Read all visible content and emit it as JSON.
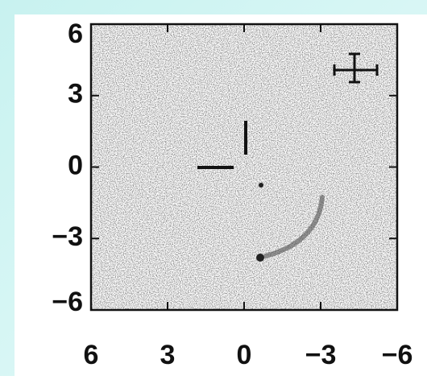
{
  "chart_data": {
    "type": "image",
    "xlim": [
      6,
      -6
    ],
    "xticks": [
      6,
      3,
      0,
      {
        "value": -3,
        "label": "−3"
      },
      {
        "value": -6,
        "label": "−6"
      }
    ],
    "ylim": [
      -6,
      6
    ],
    "yticks": [
      6,
      3,
      0,
      {
        "value": -3,
        "label": "−3"
      },
      {
        "value": -6,
        "label": "−6"
      }
    ]
  }
}
